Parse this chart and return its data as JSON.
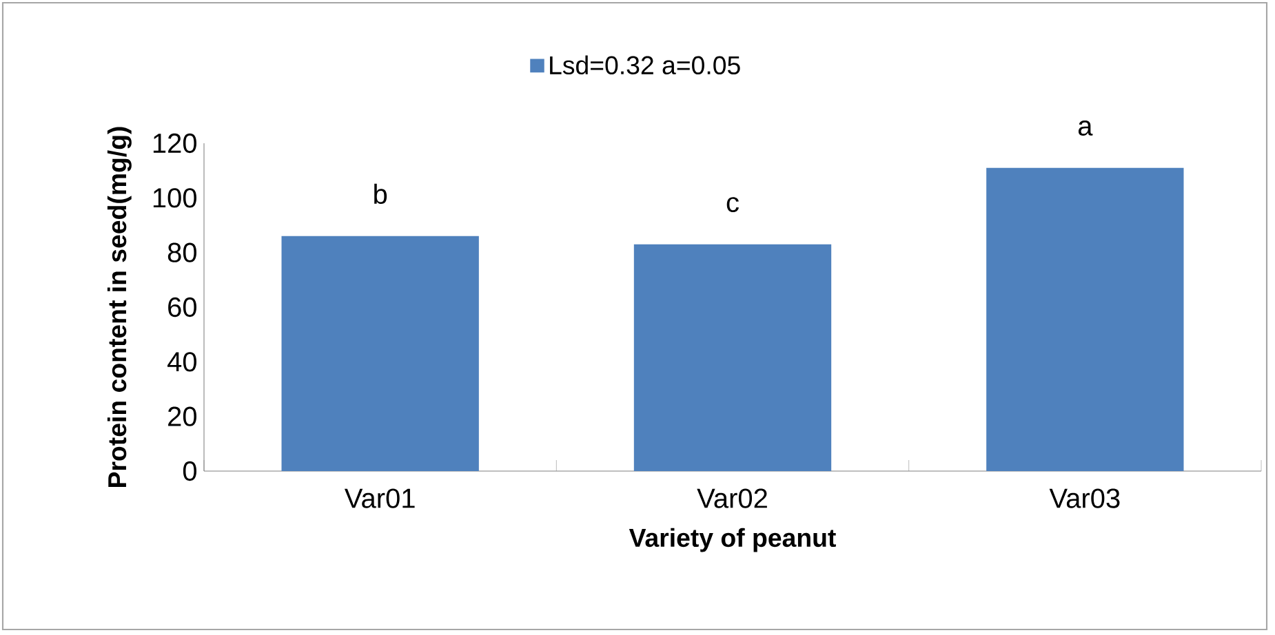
{
  "chart_data": {
    "type": "bar",
    "xlabel": "Variety of peanut",
    "ylabel": "Protein content in seed(mg/g)",
    "categories": [
      "Var01",
      "Var02",
      "Var03"
    ],
    "series": [
      {
        "name": "Lsd=0.32 a=0.05",
        "color": "#4f81bd",
        "values": [
          86,
          83,
          111
        ]
      }
    ],
    "ylim": [
      0,
      120
    ],
    "yticks": [
      0,
      20,
      40,
      60,
      80,
      100,
      120
    ],
    "grid": false,
    "legend": "top",
    "annotations": [
      {
        "text": "b",
        "x": "Var01",
        "y": 86
      },
      {
        "text": "c",
        "x": "Var02",
        "y": 83
      },
      {
        "text": "a",
        "x": "Var03",
        "y": 111
      }
    ]
  }
}
